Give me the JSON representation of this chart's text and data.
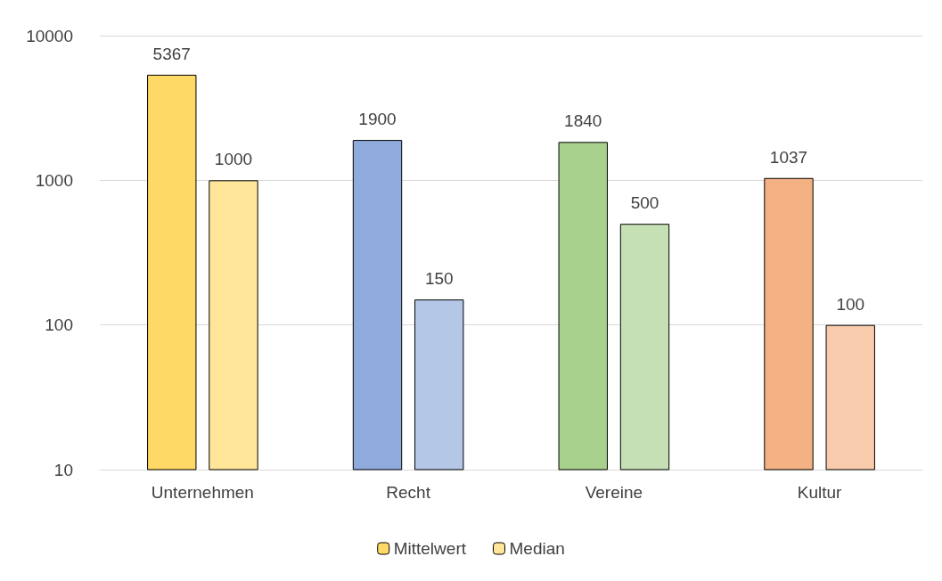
{
  "chart_data": {
    "type": "bar",
    "categories": [
      "Unternehmen",
      "Recht",
      "Vereine",
      "Kultur"
    ],
    "series": [
      {
        "name": "Mittelwert",
        "colors": [
          "#ffd966",
          "#8faadc",
          "#a9d18e",
          "#f4b183"
        ],
        "values": [
          5367,
          1900,
          1840,
          1037
        ]
      },
      {
        "name": "Median",
        "colors": [
          "#ffe699",
          "#b4c7e7",
          "#c5e0b4",
          "#f8cbad"
        ],
        "values": [
          1000,
          150,
          500,
          100
        ]
      }
    ],
    "log": "y",
    "ylim": [
      10,
      10000
    ],
    "yticks": [
      10,
      100,
      1000,
      10000
    ],
    "grid": "y",
    "legend": "bottom",
    "data_labels": true
  }
}
